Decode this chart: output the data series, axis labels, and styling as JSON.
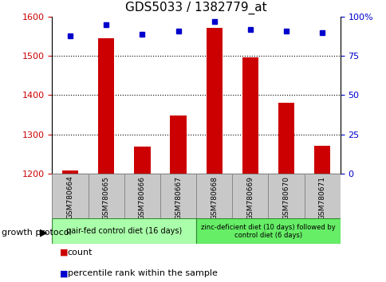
{
  "title": "GDS5033 / 1382779_at",
  "samples": [
    "GSM780664",
    "GSM780665",
    "GSM780666",
    "GSM780667",
    "GSM780668",
    "GSM780669",
    "GSM780670",
    "GSM780671"
  ],
  "counts": [
    1207,
    1546,
    1268,
    1349,
    1571,
    1497,
    1381,
    1270
  ],
  "percentiles": [
    88,
    95,
    89,
    91,
    97,
    92,
    91,
    90
  ],
  "ylim_left": [
    1200,
    1600
  ],
  "ylim_right": [
    0,
    100
  ],
  "yticks_left": [
    1200,
    1300,
    1400,
    1500,
    1600
  ],
  "yticks_right": [
    0,
    25,
    50,
    75,
    100
  ],
  "bar_color": "#cc0000",
  "dot_color": "#0000cc",
  "bar_width": 0.45,
  "group1_label": "pair-fed control diet (16 days)",
  "group2_label": "zinc-deficient diet (10 days) followed by\ncontrol diet (6 days)",
  "group1_color": "#aaffaa",
  "group2_color": "#66ee66",
  "protocol_label": "growth protocol",
  "legend_count_label": "count",
  "legend_pct_label": "percentile rank within the sample",
  "background_color": "#ffffff",
  "plot_bg_color": "#ffffff",
  "tick_label_color_left": "#cc0000",
  "tick_label_color_right": "#0000cc",
  "sample_bg_color": "#c8c8c8",
  "grid_color": "#000000"
}
